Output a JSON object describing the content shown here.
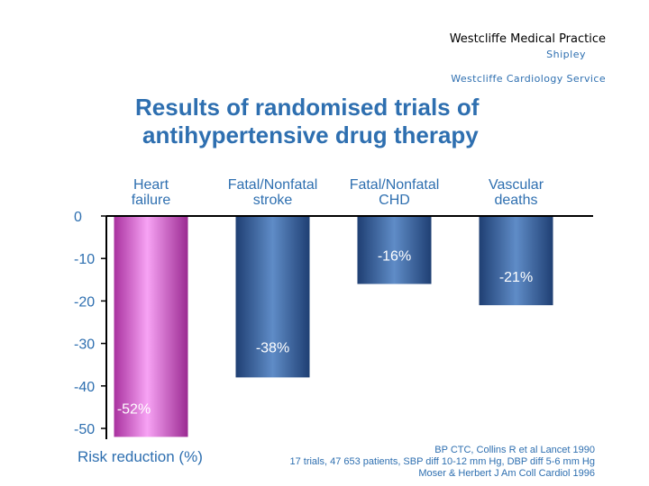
{
  "header": {
    "practice": "Westcliffe Medical Practice",
    "place": "Shipley",
    "service": "Westcliffe Cardiology Service"
  },
  "title": {
    "line1": "Results of randomised trials of",
    "line2": "antihypertensive drug therapy"
  },
  "references": {
    "line1": "BP CTC, Collins R et al Lancet 1990",
    "line2": "17 trials, 47 653 patients, SBP diff 10-12 mm Hg, DBP diff 5-6 mm Hg",
    "line3": "Moser & Herbert J Am Coll Cardiol 1996"
  },
  "colors": {
    "axis": "#000000",
    "text": "#2e6fb0",
    "heart_failure_bar": "#d36ad6",
    "other_bars": "#3d6aa6"
  },
  "chart_data": {
    "type": "bar",
    "title": "Results of randomised trials of antihypertensive drug therapy",
    "xlabel": "",
    "ylabel": "Risk reduction (%)",
    "categories": [
      [
        "Heart",
        "failure"
      ],
      [
        "Fatal/Nonfatal",
        "stroke"
      ],
      [
        "Fatal/Nonfatal",
        "CHD"
      ],
      [
        "Vascular",
        "deaths"
      ]
    ],
    "values": [
      -52,
      -38,
      -16,
      -21
    ],
    "labels": [
      "-52%",
      "-38%",
      "-16%",
      "-21%"
    ],
    "yticks": [
      0,
      -10,
      -20,
      -30,
      -40,
      -50
    ],
    "ylim": [
      -52,
      0
    ],
    "grid": false
  }
}
